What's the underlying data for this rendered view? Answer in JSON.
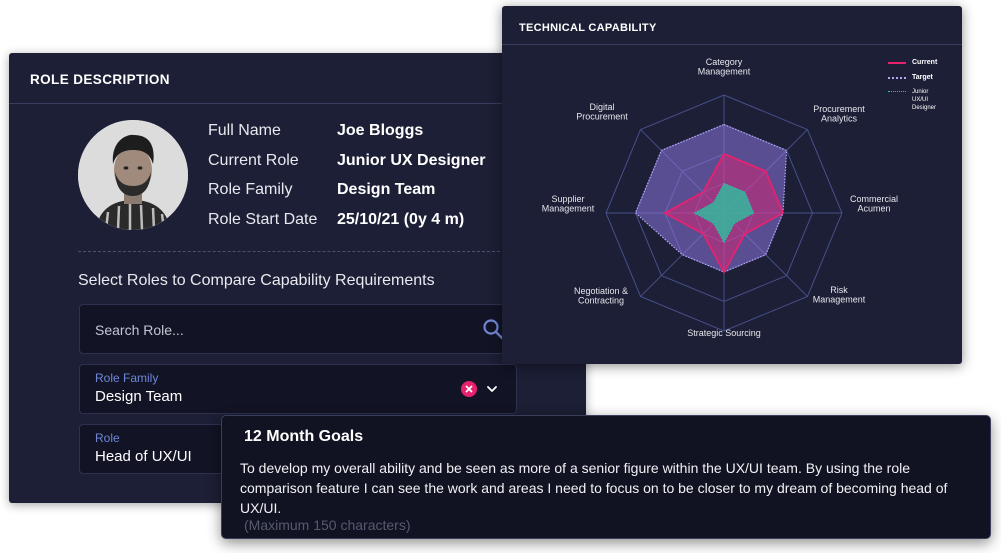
{
  "role_card": {
    "title": "ROLE DESCRIPTION",
    "profile": {
      "full_name_label": "Full Name",
      "full_name": "Joe Bloggs",
      "current_role_label": "Current Role",
      "current_role": "Junior UX Designer",
      "role_family_label": "Role Family",
      "role_family": "Design Team",
      "start_date_label": "Role Start Date",
      "start_date": "25/10/21 (0y 4 m)"
    },
    "compare_title": "Select Roles to Compare Capability Requirements",
    "search": {
      "placeholder": "Search Role...",
      "icon": "search-icon"
    },
    "role_family_select": {
      "label": "Role Family",
      "value": "Design Team"
    },
    "role_select": {
      "label": "Role",
      "value": "Head of UX/UI"
    }
  },
  "tech_card": {
    "title": "TECHNICAL CAPABILITY",
    "legend": [
      {
        "name": "Current",
        "color": "#e8216f",
        "style": "solid"
      },
      {
        "name": "Target",
        "color": "#b4a6f2",
        "style": "dotted"
      },
      {
        "name": "Junior UX/UI Designer",
        "color": "#26c8a0",
        "style": "dotted"
      }
    ]
  },
  "chart_data": {
    "type": "radar",
    "axes": [
      "Category Management",
      "Procurement Analytics",
      "Commercial Acumen",
      "Risk Management",
      "Strategic Sourcing",
      "Negotiation & Contracting",
      "Supplier Management",
      "Digital Procurement"
    ],
    "levels": 4,
    "max": 4,
    "series": [
      {
        "name": "Target",
        "values": [
          3,
          3,
          2,
          2,
          2,
          2,
          3,
          3
        ],
        "color": "#8e74de"
      },
      {
        "name": "Current",
        "values": [
          2,
          2,
          2,
          1,
          2,
          1,
          2,
          1
        ],
        "color": "#e8216f"
      },
      {
        "name": "Junior UX/UI Designer",
        "values": [
          1,
          1,
          1,
          0.5,
          1,
          0.5,
          1,
          0.5
        ],
        "color": "#26c8a0"
      }
    ]
  },
  "goals_card": {
    "title": "12 Month Goals",
    "text": "To develop my overall ability and be seen as more of a senior figure within the UX/UI team. By using the role comparison feature I can see the work and areas I need to focus on to be closer to my dream of becoming head of UX/UI.",
    "hint": "(Maximum 150 characters)"
  },
  "colors": {
    "card_bg": "#1c1f35",
    "field_bg": "#121426",
    "accent_pink": "#e8216f",
    "accent_blue": "#6f86d6"
  }
}
